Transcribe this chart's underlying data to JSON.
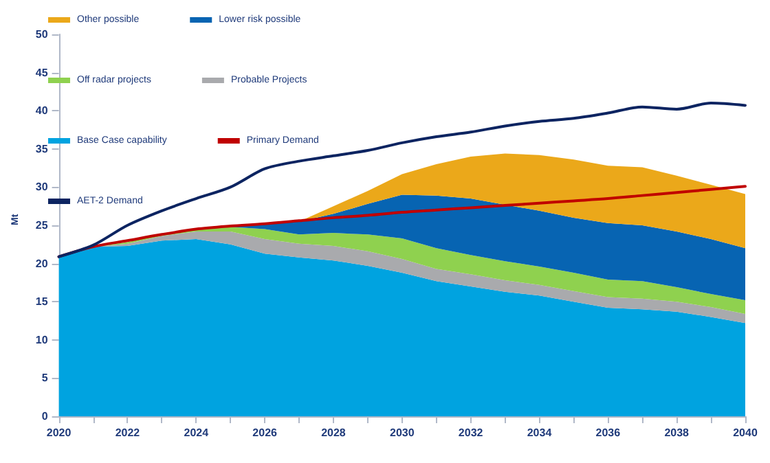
{
  "chart_data": {
    "type": "area",
    "ylabel": "Mt",
    "stacked": true,
    "grid": false,
    "legend": "top left",
    "marker": "none",
    "x": [
      2020,
      2021,
      2022,
      2023,
      2024,
      2025,
      2026,
      2027,
      2028,
      2029,
      2030,
      2031,
      2032,
      2033,
      2034,
      2035,
      2036,
      2037,
      2038,
      2039,
      2040
    ],
    "xlim": [
      2020,
      2040
    ],
    "xticks": [
      2020,
      {
        "value": 2021,
        "label": null
      },
      2022,
      {
        "value": 2023,
        "label": null
      },
      2024,
      {
        "value": 2025,
        "label": null
      },
      2026,
      {
        "value": 2027,
        "label": null
      },
      2028,
      {
        "value": 2029,
        "label": null
      },
      2030,
      {
        "value": 2031,
        "label": null
      },
      2032,
      {
        "value": 2033,
        "label": null
      },
      2034,
      {
        "value": 2035,
        "label": null
      },
      2036,
      {
        "value": 2037,
        "label": null
      },
      2038,
      {
        "value": 2039,
        "label": null
      },
      2040
    ],
    "ylim": [
      0,
      50
    ],
    "yticks": [
      0,
      5,
      10,
      15,
      20,
      25,
      30,
      35,
      40,
      45,
      50
    ],
    "series": [
      {
        "name": "Base Case capability",
        "color": "#00a3e0",
        "values": [
          20.8,
          22.2,
          22.3,
          23.0,
          23.2,
          22.5,
          21.3,
          20.8,
          20.4,
          19.7,
          18.8,
          17.7,
          17.0,
          16.3,
          15.8,
          15.0,
          14.2,
          14.0,
          13.7,
          13.0,
          12.2
        ]
      },
      {
        "name": "Probable Projects",
        "color": "#a9aaad",
        "values": [
          0,
          0,
          0.3,
          0.6,
          1.0,
          1.7,
          1.9,
          1.8,
          1.9,
          1.9,
          1.8,
          1.6,
          1.6,
          1.5,
          1.4,
          1.4,
          1.4,
          1.4,
          1.3,
          1.3,
          1.2
        ]
      },
      {
        "name": "Off radar projects",
        "color": "#8fd14f",
        "values": [
          0,
          0,
          0.2,
          0.2,
          0.3,
          0.6,
          1.3,
          1.2,
          1.7,
          2.2,
          2.7,
          2.7,
          2.5,
          2.5,
          2.4,
          2.4,
          2.3,
          2.3,
          1.9,
          1.7,
          1.8
        ]
      },
      {
        "name": "Lower risk possible",
        "color": "#0764b2",
        "values": [
          0,
          0,
          0,
          0,
          0,
          0.1,
          0.7,
          1.7,
          2.5,
          4.0,
          5.7,
          6.9,
          7.4,
          7.4,
          7.3,
          7.2,
          7.4,
          7.3,
          7.3,
          7.2,
          6.8
        ]
      },
      {
        "name": "Other possible",
        "color": "#eba81a",
        "values": [
          0,
          0,
          0,
          0,
          0,
          0,
          0,
          0,
          1.0,
          1.7,
          2.7,
          4.1,
          5.5,
          6.7,
          7.3,
          7.6,
          7.5,
          7.6,
          7.3,
          7.1,
          7.1
        ]
      },
      {
        "name": "Primary Demand",
        "type": "line",
        "color": "#c00000",
        "values": [
          20.9,
          22.2,
          23.0,
          23.8,
          24.5,
          24.9,
          25.2,
          25.6,
          26.0,
          26.3,
          26.7,
          27.0,
          27.3,
          27.6,
          27.9,
          28.2,
          28.5,
          28.9,
          29.3,
          29.7,
          30.1
        ]
      },
      {
        "name": "AET-2 Demand",
        "type": "line",
        "color": "#0c2461",
        "values": [
          20.9,
          22.4,
          25.0,
          26.9,
          28.5,
          30.0,
          32.4,
          33.4,
          34.1,
          34.8,
          35.8,
          36.6,
          37.2,
          38.0,
          38.6,
          39.0,
          39.7,
          40.5,
          40.2,
          41.0,
          40.7
        ]
      }
    ]
  }
}
